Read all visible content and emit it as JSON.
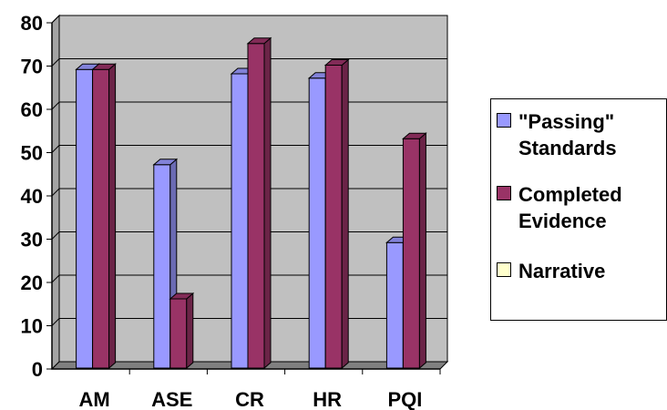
{
  "chart_data": {
    "type": "bar",
    "categories": [
      "AM",
      "ASE",
      "CR",
      "HR",
      "PQI"
    ],
    "series": [
      {
        "name": "\"Passing\" Standards",
        "color": "#9999ff",
        "values": [
          69,
          47,
          68,
          67,
          29
        ]
      },
      {
        "name": "Completed Evidence",
        "color": "#993366",
        "values": [
          69,
          16,
          75,
          70,
          53
        ]
      },
      {
        "name": "Narrative",
        "color": "#ffffcc",
        "values": [
          0,
          0,
          0,
          0,
          0
        ]
      }
    ],
    "ylim": [
      0,
      80
    ],
    "yticks": [
      "0",
      "10",
      "20",
      "30",
      "40",
      "50",
      "60",
      "70",
      "80"
    ],
    "grid": true,
    "legend": "right",
    "style": "3d-column",
    "wall_color": "#c0c0c0",
    "floor_color": "#808080"
  }
}
